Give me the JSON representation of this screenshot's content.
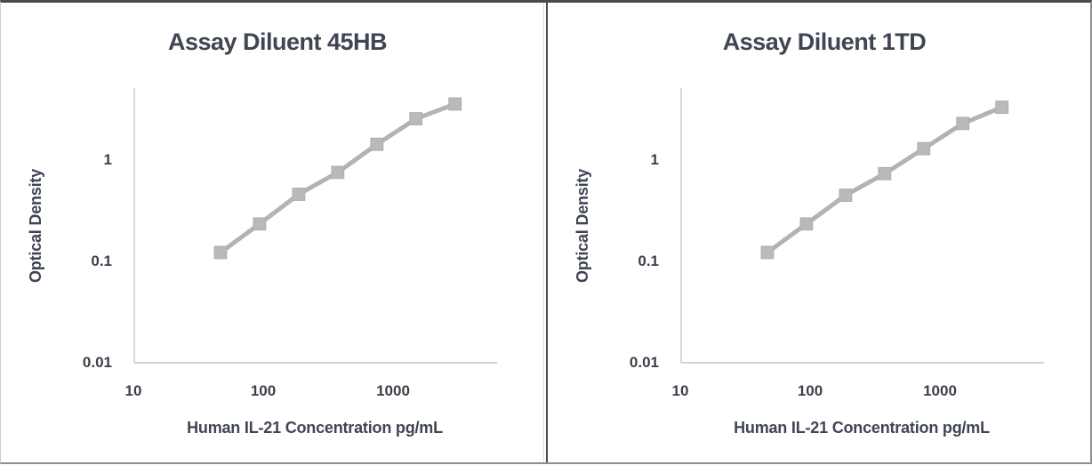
{
  "figure": {
    "kind": "two-panel standard curve comparison",
    "panel_count": 2
  },
  "colors": {
    "text": "#3f4553",
    "tick": "#3c4049",
    "axis": "#c6c6c6",
    "series": "#b3b3b3",
    "marker": "#b9b9b9",
    "frame_dark": "#4a4a4a",
    "frame_mid": "#8e8e8e",
    "frame_light": "#cdcdcd"
  },
  "chart_data": [
    {
      "type": "line",
      "title": "Assay Diluent 45HB",
      "xlabel": "Human IL-21 Concentration pg/mL",
      "ylabel": "Optical Density",
      "x_scale": "log",
      "y_scale": "log",
      "xlim": [
        10,
        6300
      ],
      "ylim": [
        0.01,
        5
      ],
      "x_ticks": [
        10,
        100,
        1000
      ],
      "y_ticks": [
        1,
        0.1,
        0.01
      ],
      "grid": false,
      "legend": "none",
      "marker": "square",
      "x": [
        46.9,
        93.8,
        187.5,
        375,
        750,
        1500,
        3000
      ],
      "y": [
        0.12,
        0.23,
        0.45,
        0.74,
        1.4,
        2.5,
        3.5
      ]
    },
    {
      "type": "line",
      "title": "Assay Diluent 1TD",
      "xlabel": "Human IL-21 Concentration pg/mL",
      "ylabel": "Optical Density",
      "x_scale": "log",
      "y_scale": "log",
      "xlim": [
        10,
        6300
      ],
      "ylim": [
        0.01,
        5
      ],
      "x_ticks": [
        10,
        100,
        1000
      ],
      "y_ticks": [
        1,
        0.1,
        0.01
      ],
      "grid": false,
      "legend": "none",
      "marker": "square",
      "x": [
        46.9,
        93.8,
        187.5,
        375,
        750,
        1500,
        3000
      ],
      "y": [
        0.12,
        0.23,
        0.44,
        0.72,
        1.27,
        2.25,
        3.25
      ]
    }
  ]
}
